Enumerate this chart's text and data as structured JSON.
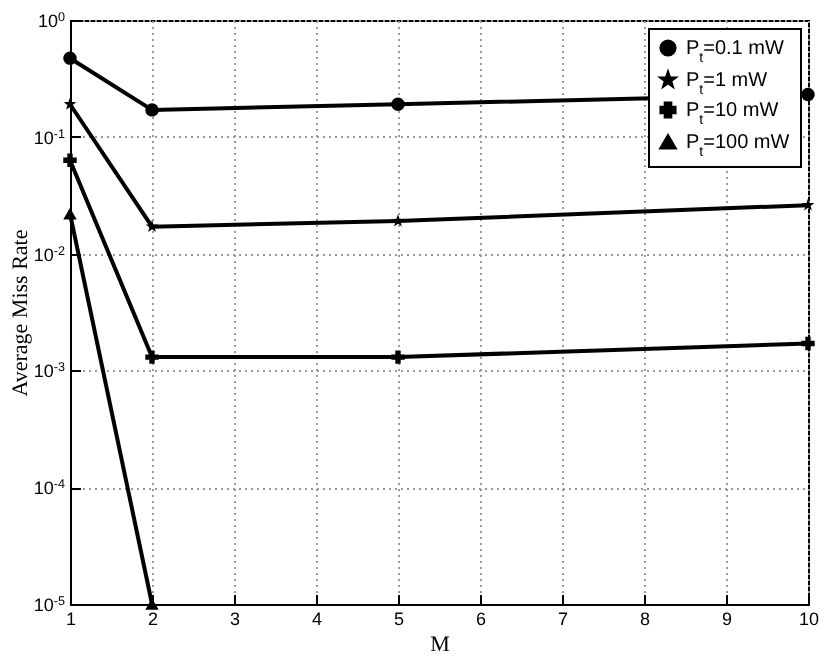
{
  "chart_data": {
    "type": "line",
    "xlabel": "M",
    "ylabel": "Average Miss Rate",
    "log": "y",
    "grid": true,
    "legend": "top right",
    "line_style": "solid",
    "x": [
      1,
      2,
      5,
      10
    ],
    "xlim": [
      1,
      10
    ],
    "xticks": [
      1,
      2,
      3,
      4,
      5,
      6,
      7,
      8,
      9,
      10
    ],
    "ylim": [
      1e-05,
      1
    ],
    "yticks": [
      {
        "value": 1e-05,
        "label": "10$^{-5}$"
      },
      {
        "value": 0.0001,
        "label": "10$^{-4}$"
      },
      {
        "value": 0.001,
        "label": "10$^{-3}$"
      },
      {
        "value": 0.01,
        "label": "10$^{-2}$"
      },
      {
        "value": 0.1,
        "label": "10$^{-1}$"
      },
      {
        "value": 1,
        "label": "10$^{0}$"
      }
    ],
    "series": [
      {
        "name": "P$_{t}$=0.1 mW",
        "color": "#000000",
        "marker": "circle",
        "values": [
          0.47,
          0.17,
          0.19,
          0.23
        ]
      },
      {
        "name": "P$_{t}$=1 mW",
        "color": "#000000",
        "marker": "star",
        "values": [
          0.19,
          0.017,
          0.019,
          0.026
        ]
      },
      {
        "name": "P$_{t}$=10 mW",
        "color": "#000000",
        "marker": "cross",
        "values": [
          0.063,
          0.0013,
          0.0013,
          0.0017
        ]
      },
      {
        "name": "P$_{t}$=100 mW",
        "color": "#000000",
        "marker": "triangle",
        "values": [
          0.022,
          1e-05,
          null,
          null
        ]
      }
    ]
  }
}
